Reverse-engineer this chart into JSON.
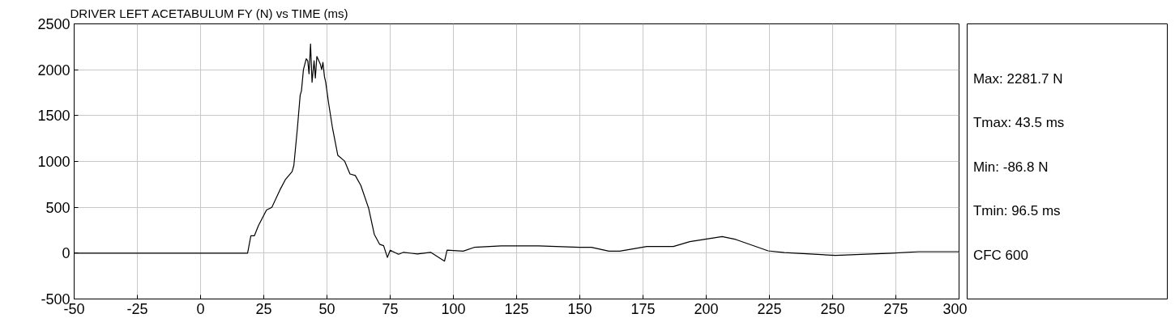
{
  "chart_data": {
    "type": "line",
    "title": "DRIVER LEFT ACETABULUM FY (N) vs TIME (ms)",
    "x": [
      -50,
      -30,
      -10,
      5,
      14.4,
      18.6,
      19.9,
      21.3,
      22.9,
      26.1,
      28.2,
      31.4,
      33.5,
      36.2,
      36.9,
      38.3,
      39.4,
      39.9,
      40.7,
      41.8,
      42.4,
      42.9,
      43.5,
      44.1,
      44.9,
      45.4,
      46.0,
      46.8,
      47.3,
      47.9,
      48.4,
      49.0,
      49.5,
      50.6,
      52.2,
      54.3,
      57.0,
      59.1,
      61.2,
      63.4,
      66.5,
      68.7,
      70.8,
      72.4,
      73.9,
      75.0,
      78.3,
      80.3,
      85.7,
      91.0,
      96.5,
      97.5,
      103.9,
      108.2,
      118.9,
      133.8,
      149.8,
      154.6,
      161.5,
      165.8,
      176.5,
      187.0,
      193.5,
      206.3,
      211.7,
      224.5,
      230.9,
      251.1,
      273.5,
      284.1,
      300
    ],
    "series": [
      {
        "color": "#000000",
        "values": [
          0,
          0,
          0,
          0,
          0,
          0,
          190,
          190,
          300,
          470,
          500,
          690,
          800,
          888,
          956,
          1362,
          1722,
          1769,
          2003,
          2119,
          2097,
          1956,
          2281.7,
          1863,
          2097,
          1909,
          2144,
          2097,
          2066,
          2003,
          2081,
          1925,
          1863,
          1644,
          1362,
          1066,
          1003,
          863,
          847,
          738,
          488,
          206,
          97,
          81,
          -47,
          32,
          -13,
          9,
          -9,
          9,
          -86.8,
          32,
          22,
          63,
          79,
          79,
          63,
          63,
          22,
          22,
          73,
          73,
          126,
          180,
          149,
          25,
          6,
          -25,
          0,
          16,
          16
        ]
      }
    ],
    "xlim": [
      -50,
      300
    ],
    "ylim": [
      -500,
      2500
    ],
    "xticks": [
      -50,
      -25,
      0,
      25,
      50,
      75,
      100,
      125,
      150,
      175,
      200,
      225,
      250,
      275,
      300
    ],
    "yticks": [
      -500,
      0,
      500,
      1000,
      1500,
      2000,
      2500
    ],
    "grid": true,
    "marker": "none",
    "line_style": "solid",
    "annotations": [
      "Max: 2281.7 N",
      "Tmax: 43.5 ms",
      "Min: -86.8 N",
      "Tmin: 96.5 ms",
      "CFC 600"
    ]
  }
}
